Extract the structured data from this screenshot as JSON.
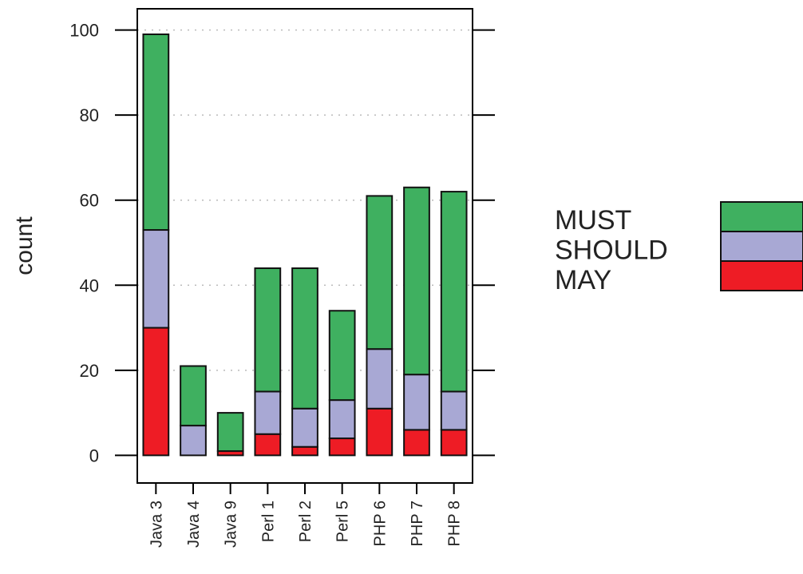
{
  "chart_data": {
    "type": "bar",
    "stacked": true,
    "categories": [
      "Java 3",
      "Java 4",
      "Java 9",
      "Perl 1",
      "Perl 2",
      "Perl 5",
      "PHP 6",
      "PHP 7",
      "PHP 8"
    ],
    "series": [
      {
        "name": "MAY",
        "color": "#ee1c25",
        "values": [
          30,
          0,
          1,
          5,
          2,
          4,
          11,
          6,
          6
        ]
      },
      {
        "name": "SHOULD",
        "color": "#a8a8d4",
        "values": [
          23,
          7,
          0,
          10,
          9,
          9,
          14,
          13,
          9
        ]
      },
      {
        "name": "MUST",
        "color": "#3fb060",
        "values": [
          46,
          14,
          9,
          29,
          33,
          21,
          36,
          44,
          47
        ]
      }
    ],
    "ylabel": "count",
    "xlabel": "",
    "ylim": [
      -6.5,
      105
    ],
    "yticks": [
      0,
      20,
      40,
      60,
      80,
      100
    ],
    "grid": "horizontal dotted",
    "legend": {
      "position": "right",
      "order": [
        "MUST",
        "SHOULD",
        "MAY"
      ]
    }
  }
}
